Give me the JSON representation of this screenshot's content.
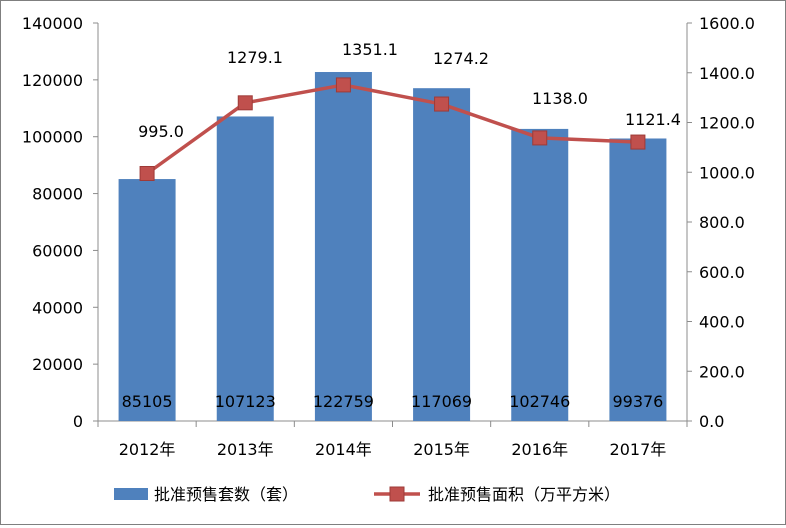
{
  "chart_data": {
    "type": "bar+line",
    "categories": [
      "2012年",
      "2013年",
      "2014年",
      "2015年",
      "2016年",
      "2017年"
    ],
    "series": [
      {
        "name": "批准预售套数（套）",
        "type": "bar",
        "axis": "left",
        "color": "#4f81bd",
        "values": [
          85105,
          107123,
          122759,
          117069,
          102746,
          99376
        ],
        "labels": [
          "85105",
          "107123",
          "122759",
          "117069",
          "102746",
          "99376"
        ]
      },
      {
        "name": "批准预售面积（万平方米）",
        "type": "line",
        "axis": "right",
        "color": "#c0504d",
        "values": [
          995.0,
          1279.1,
          1351.1,
          1274.2,
          1138.0,
          1121.4
        ],
        "labels": [
          "995.0",
          "1279.1",
          "1351.1",
          "1274.2",
          "1138.0",
          "1121.4"
        ]
      }
    ],
    "y_left": {
      "min": 0,
      "max": 140000,
      "step": 20000,
      "ticks": [
        "0",
        "20000",
        "40000",
        "60000",
        "80000",
        "100000",
        "120000",
        "140000"
      ]
    },
    "y_right": {
      "min": 0,
      "max": 1600,
      "step": 200,
      "ticks": [
        "0.0",
        "200.0",
        "400.0",
        "600.0",
        "800.0",
        "1000.0",
        "1200.0",
        "1400.0",
        "1600.0"
      ]
    },
    "grid": false,
    "legend_position": "bottom"
  }
}
